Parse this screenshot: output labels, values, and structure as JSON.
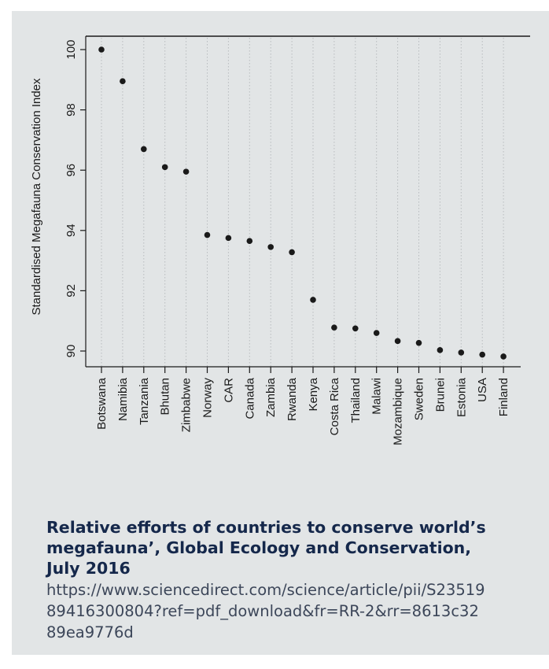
{
  "chart_data": {
    "type": "scatter",
    "ylabel": "Standardised Megafauna Conservation Index",
    "xlabel": "",
    "ylim": [
      89.5,
      100.2
    ],
    "yticks": [
      90,
      92,
      94,
      96,
      98,
      100
    ],
    "grid": "vertical dotted",
    "categories": [
      "Botswana",
      "Namibia",
      "Tanzania",
      "Bhutan",
      "Zimbabwe",
      "Norway",
      "CAR",
      "Canada",
      "Zambia",
      "Rwanda",
      "Kenya",
      "Costa Rica",
      "Thailand",
      "Malawi",
      "Mozambique",
      "Sweden",
      "Brunei",
      "Estonia",
      "USA",
      "Finland"
    ],
    "values": [
      100.0,
      98.95,
      96.7,
      96.1,
      95.95,
      93.85,
      93.75,
      93.65,
      93.45,
      93.28,
      91.7,
      90.78,
      90.75,
      90.6,
      90.33,
      90.27,
      90.03,
      89.95,
      89.88,
      89.82
    ],
    "marker_color": "#1a1a1a"
  },
  "caption": {
    "title": "Relative efforts of countries to conserve world’s megafauna’, Global Ecology and Conservation, July 2016",
    "url": "https://www.sciencedirect.com/science/article/pii/S2351989416300804?ref=pdf_download&fr=RR-2&rr=8613c3289ea9776d"
  }
}
